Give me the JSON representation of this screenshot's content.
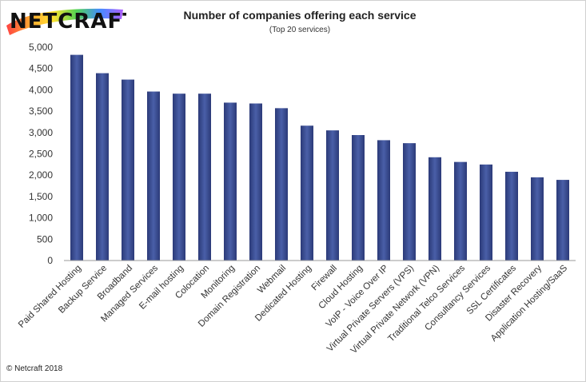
{
  "logo": {
    "text": "NETCRAFT"
  },
  "title": "Number of companies offering each service",
  "subtitle": "(Top 20 services)",
  "copyright": "© Netcraft 2018",
  "colors": {
    "bar_dark": "#2b3a78",
    "bar_light": "#4a5fa8",
    "axis": "#999999"
  },
  "chart_data": {
    "type": "bar",
    "title": "Number of companies offering each service",
    "subtitle": "(Top 20 services)",
    "xlabel": "",
    "ylabel": "",
    "ylim": [
      0,
      5000
    ],
    "yticks": [
      0,
      500,
      1000,
      1500,
      2000,
      2500,
      3000,
      3500,
      4000,
      4500,
      5000
    ],
    "ytick_labels": [
      "0",
      "500",
      "1,000",
      "1,500",
      "2,000",
      "2,500",
      "3,000",
      "3,500",
      "4,000",
      "4,500",
      "5,000"
    ],
    "grid": false,
    "categories": [
      "Paid Shared Hosting",
      "Backup Service",
      "Broadband",
      "Managed Services",
      "E-mail hosting",
      "Colocation",
      "Monitoring",
      "Domain Registration",
      "Webmail",
      "Dedicated Hosting",
      "Firewall",
      "Cloud Hosting",
      "VoIP - Voice Over IP",
      "Virtual Private Servers (VPS)",
      "Virtual Private Network (VPN)",
      "Traditional Telco Services",
      "Consultancy Services",
      "SSL Certificates",
      "Disaster Recovery",
      "Application Hosting/SaaS"
    ],
    "values": [
      4820,
      4390,
      4240,
      3960,
      3910,
      3910,
      3700,
      3680,
      3570,
      3160,
      3050,
      2940,
      2820,
      2750,
      2420,
      2310,
      2250,
      2080,
      1950,
      1890
    ]
  }
}
